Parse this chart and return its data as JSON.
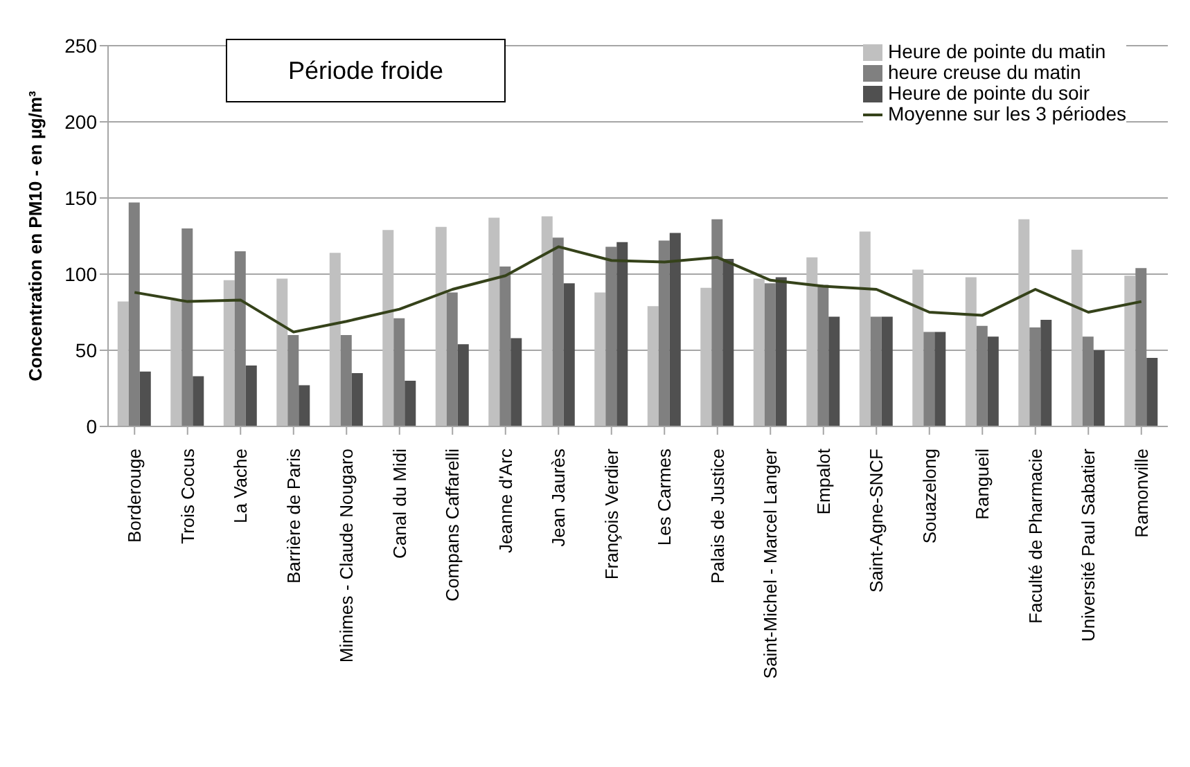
{
  "chart_data": {
    "type": "bar",
    "title": "Période froide",
    "ylabel": "Concentration en PM10 - en µg/m³",
    "categories": [
      "Borderouge",
      "Trois Cocus",
      "La Vache",
      "Barrière de Paris",
      "Minimes - Claude Nougaro",
      "Canal du Midi",
      "Compans Caffarelli",
      "Jeanne d'Arc",
      "Jean Jaurès",
      "François Verdier",
      "Les Carmes",
      "Palais de Justice",
      "Saint-Michel - Marcel Langer",
      "Empalot",
      "Saint-Agne-SNCF",
      "Souazelong",
      "Rangueil",
      "Faculté de Pharmacie",
      "Université Paul Sabatier",
      "Ramonville"
    ],
    "series": [
      {
        "name": "Heure de pointe du matin",
        "color": "#c0c0c0",
        "values": [
          82,
          83,
          96,
          97,
          114,
          129,
          131,
          137,
          138,
          88,
          79,
          91,
          97,
          111,
          128,
          103,
          98,
          136,
          116,
          99
        ]
      },
      {
        "name": "heure creuse du matin",
        "color": "#808080",
        "values": [
          147,
          130,
          115,
          60,
          60,
          71,
          88,
          105,
          124,
          118,
          122,
          136,
          94,
          93,
          72,
          62,
          66,
          65,
          59,
          104
        ]
      },
      {
        "name": "Heure de pointe du soir",
        "color": "#505050",
        "values": [
          36,
          33,
          40,
          27,
          35,
          30,
          54,
          58,
          94,
          121,
          127,
          110,
          98,
          72,
          72,
          62,
          59,
          70,
          50,
          45
        ]
      },
      {
        "name": "Moyenne sur les 3 périodes",
        "type": "line",
        "color": "#35421a",
        "values": [
          88,
          82,
          83,
          62,
          69,
          77,
          90,
          99,
          118,
          109,
          108,
          111,
          96,
          92,
          90,
          75,
          73,
          90,
          75,
          82
        ]
      }
    ],
    "ylim": [
      0,
      250
    ],
    "yticks": [
      0,
      50,
      100,
      150,
      200,
      250
    ],
    "grid": "y",
    "legend": "top right",
    "marker": "none",
    "line_style": "solid"
  }
}
